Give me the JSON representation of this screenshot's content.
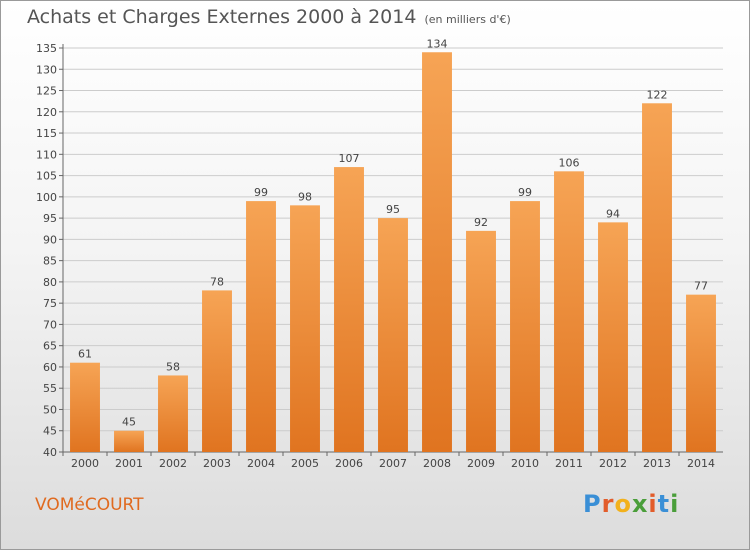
{
  "header": {
    "title": "Achats et Charges Externes 2000 à 2014",
    "unit": "(en milliers d'€)"
  },
  "footer": {
    "place": "VOMéCOURT",
    "logo_text": "Proxiti"
  },
  "colors": {
    "bar_top": "#f6a455",
    "bar_bottom": "#e07420",
    "grid": "#cccccc",
    "accent": "#e06a1f"
  },
  "chart_data": {
    "type": "bar",
    "title": "Achats et Charges Externes 2000 à 2014",
    "subtitle": "(en milliers d'€)",
    "xlabel": "",
    "ylabel": "",
    "categories": [
      "2000",
      "2001",
      "2002",
      "2003",
      "2004",
      "2005",
      "2006",
      "2007",
      "2008",
      "2009",
      "2010",
      "2011",
      "2012",
      "2013",
      "2014"
    ],
    "values": [
      61,
      45,
      58,
      78,
      99,
      98,
      107,
      95,
      134,
      92,
      99,
      106,
      94,
      122,
      77
    ],
    "ylim": [
      40,
      135
    ],
    "yticks": [
      40,
      45,
      50,
      55,
      60,
      65,
      70,
      75,
      80,
      85,
      90,
      95,
      100,
      105,
      110,
      115,
      120,
      125,
      130,
      135
    ],
    "grid": true,
    "legend": "none"
  }
}
